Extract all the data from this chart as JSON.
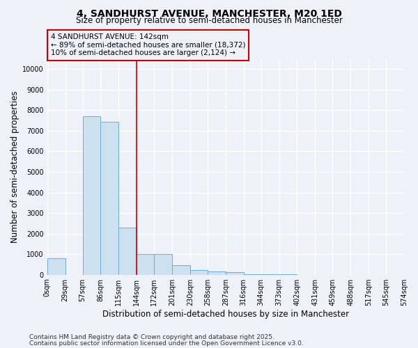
{
  "title": "4, SANDHURST AVENUE, MANCHESTER, M20 1ED",
  "subtitle": "Size of property relative to semi-detached houses in Manchester",
  "xlabel": "Distribution of semi-detached houses by size in Manchester",
  "ylabel": "Number of semi-detached properties",
  "property_label": "4 SANDHURST AVENUE: 142sqm",
  "pct_smaller": 89,
  "count_smaller": 18372,
  "pct_larger": 10,
  "count_larger": 2124,
  "bin_edges": [
    0,
    29,
    57,
    86,
    115,
    144,
    172,
    201,
    230,
    258,
    287,
    316,
    344,
    373,
    402,
    431,
    459,
    488,
    517,
    545,
    574
  ],
  "bar_heights": [
    800,
    0,
    7700,
    7450,
    2300,
    1000,
    1000,
    450,
    230,
    150,
    110,
    30,
    15,
    10,
    5,
    3,
    2,
    1,
    0,
    0
  ],
  "bar_color": "#cce0f0",
  "bar_edge_color": "#6baed6",
  "red_line_x": 144,
  "ylim": [
    0,
    10500
  ],
  "yticks": [
    0,
    1000,
    2000,
    3000,
    4000,
    5000,
    6000,
    7000,
    8000,
    9000,
    10000
  ],
  "tick_labels": [
    "0sqm",
    "29sqm",
    "57sqm",
    "86sqm",
    "115sqm",
    "144sqm",
    "172sqm",
    "201sqm",
    "230sqm",
    "258sqm",
    "287sqm",
    "316sqm",
    "344sqm",
    "373sqm",
    "402sqm",
    "431sqm",
    "459sqm",
    "488sqm",
    "517sqm",
    "545sqm",
    "574sqm"
  ],
  "annotation_box_color": "#cc0000",
  "footnote1": "Contains HM Land Registry data © Crown copyright and database right 2025.",
  "footnote2": "Contains public sector information licensed under the Open Government Licence v3.0.",
  "bg_color": "#eef2f8",
  "grid_color": "#ffffff",
  "title_fontsize": 10,
  "subtitle_fontsize": 8.5,
  "axis_label_fontsize": 8.5,
  "tick_fontsize": 7,
  "footnote_fontsize": 6.5
}
